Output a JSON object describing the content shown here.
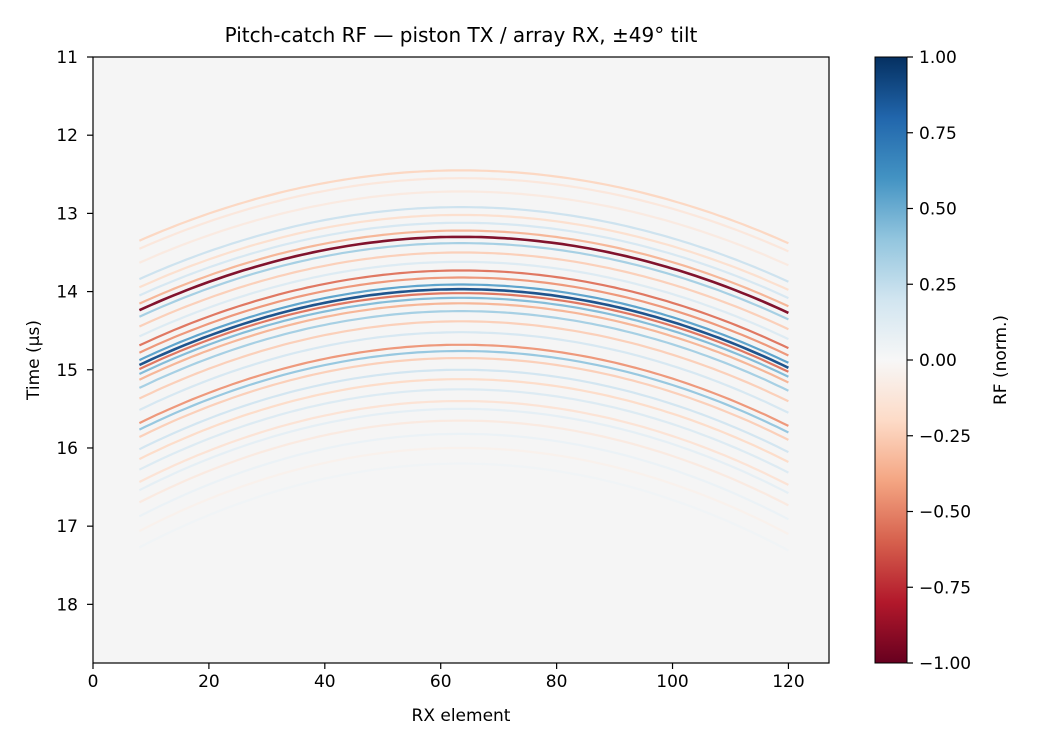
{
  "chart_data": {
    "type": "heatmap",
    "title": "Pitch-catch RF — piston TX / array RX, ±49° tilt",
    "xlabel": "RX element",
    "ylabel": "Time (µs)",
    "xlim": [
      0,
      127
    ],
    "ylim": [
      18.75,
      11.0
    ],
    "y_inverted": true,
    "xticks": [
      0,
      20,
      40,
      60,
      80,
      100,
      120
    ],
    "xtick_labels": [
      "0",
      "20",
      "40",
      "60",
      "80",
      "100",
      "120"
    ],
    "yticks": [
      11,
      12,
      13,
      14,
      15,
      16,
      17,
      18
    ],
    "ytick_labels": [
      "11",
      "12",
      "13",
      "14",
      "15",
      "16",
      "17",
      "18"
    ],
    "colorbar": {
      "label": "RF (norm.)",
      "range": [
        -1.0,
        1.0
      ],
      "colormap": "RdBu",
      "ticks": [
        1.0,
        0.75,
        0.5,
        0.25,
        0.0,
        -0.25,
        -0.5,
        -0.75,
        -1.0
      ],
      "tick_labels": [
        "1.00",
        "0.75",
        "0.50",
        "0.25",
        "0.00",
        "−0.25",
        "−0.50",
        "−0.75",
        "−1.00"
      ]
    },
    "background_value": 0.0,
    "arc_apex_element": 63.5,
    "arc_extent_elements": [
      8,
      120
    ],
    "arcs": [
      {
        "apex_time": 12.45,
        "value": -0.22
      },
      {
        "apex_time": 12.55,
        "value": -0.12
      },
      {
        "apex_time": 12.72,
        "value": -0.1
      },
      {
        "apex_time": 12.92,
        "value": 0.22
      },
      {
        "apex_time": 13.02,
        "value": -0.18
      },
      {
        "apex_time": 13.12,
        "value": 0.18
      },
      {
        "apex_time": 13.22,
        "value": -0.35
      },
      {
        "apex_time": 13.3,
        "value": -0.95
      },
      {
        "apex_time": 13.38,
        "value": 0.35
      },
      {
        "apex_time": 13.5,
        "value": -0.25
      },
      {
        "apex_time": 13.62,
        "value": 0.15
      },
      {
        "apex_time": 13.73,
        "value": -0.55
      },
      {
        "apex_time": 13.82,
        "value": -0.45
      },
      {
        "apex_time": 13.91,
        "value": 0.55
      },
      {
        "apex_time": 13.97,
        "value": 0.9
      },
      {
        "apex_time": 14.02,
        "value": -0.55
      },
      {
        "apex_time": 14.08,
        "value": 0.45
      },
      {
        "apex_time": 14.15,
        "value": -0.35
      },
      {
        "apex_time": 14.25,
        "value": 0.35
      },
      {
        "apex_time": 14.38,
        "value": -0.25
      },
      {
        "apex_time": 14.52,
        "value": 0.18
      },
      {
        "apex_time": 14.68,
        "value": -0.45
      },
      {
        "apex_time": 14.76,
        "value": 0.4
      },
      {
        "apex_time": 14.85,
        "value": -0.25
      },
      {
        "apex_time": 15.0,
        "value": 0.2
      },
      {
        "apex_time": 15.12,
        "value": -0.2
      },
      {
        "apex_time": 15.25,
        "value": 0.15
      },
      {
        "apex_time": 15.4,
        "value": -0.15
      },
      {
        "apex_time": 15.5,
        "value": 0.1
      },
      {
        "apex_time": 15.65,
        "value": -0.1
      },
      {
        "apex_time": 15.82,
        "value": 0.07
      },
      {
        "apex_time": 16.0,
        "value": -0.05
      },
      {
        "apex_time": 16.2,
        "value": 0.04
      }
    ]
  }
}
